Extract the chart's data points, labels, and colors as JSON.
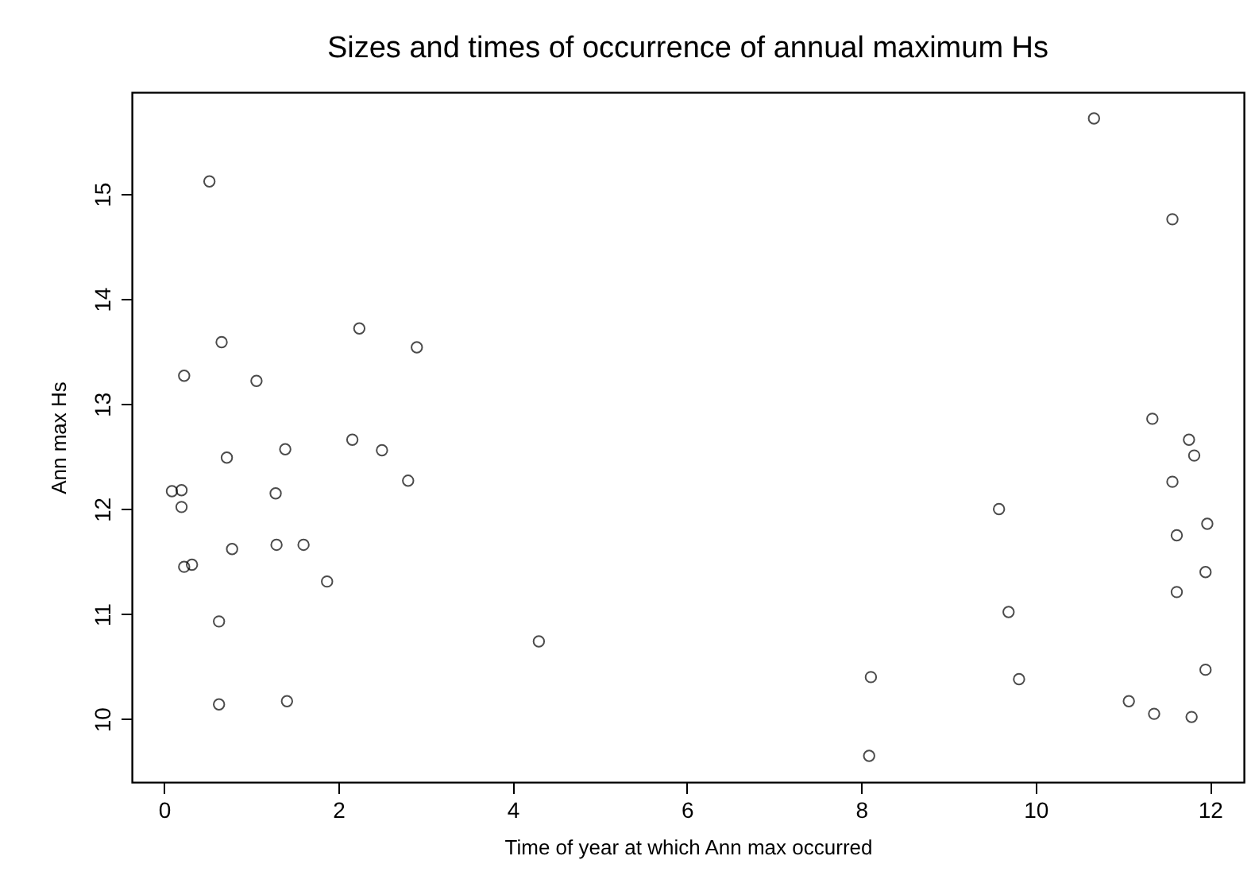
{
  "chart_data": {
    "type": "scatter",
    "title": "Sizes and times of occurrence of annual maximum Hs",
    "xlabel": "Time of year at which Ann max occurred",
    "ylabel": "Ann max Hs",
    "marker": "circle",
    "grid": false,
    "xlim": [
      -0.37,
      12.39
    ],
    "ylim": [
      9.4,
      15.97
    ],
    "xticks": [
      0,
      2,
      4,
      6,
      8,
      10,
      12
    ],
    "yticks": [
      10,
      11,
      12,
      13,
      14,
      15
    ],
    "series": [
      {
        "color": "#000000",
        "x": [
          0.09,
          0.2,
          0.2,
          0.23,
          0.23,
          0.32,
          0.52,
          0.63,
          0.63,
          0.66,
          0.72,
          0.78,
          1.06,
          1.28,
          1.29,
          1.39,
          1.41,
          1.6,
          1.87,
          2.16,
          2.24,
          2.5,
          2.8,
          2.9,
          4.3,
          8.09,
          8.11,
          9.58,
          9.69,
          9.81,
          10.67,
          11.07,
          11.34,
          11.36,
          11.57,
          11.57,
          11.62,
          11.62,
          11.76,
          11.79,
          11.82,
          11.95,
          11.95,
          11.97
        ],
        "values": [
          12.17,
          12.18,
          12.02,
          13.27,
          11.45,
          11.47,
          15.12,
          10.93,
          10.14,
          13.59,
          12.49,
          11.62,
          13.22,
          12.15,
          11.66,
          12.57,
          10.17,
          11.66,
          11.31,
          12.66,
          13.72,
          12.56,
          12.27,
          13.54,
          10.74,
          9.65,
          10.4,
          12.0,
          11.02,
          10.38,
          15.72,
          10.17,
          12.86,
          10.05,
          14.76,
          12.26,
          11.21,
          11.75,
          12.66,
          10.02,
          12.51,
          10.47,
          11.4,
          11.86
        ]
      }
    ]
  }
}
